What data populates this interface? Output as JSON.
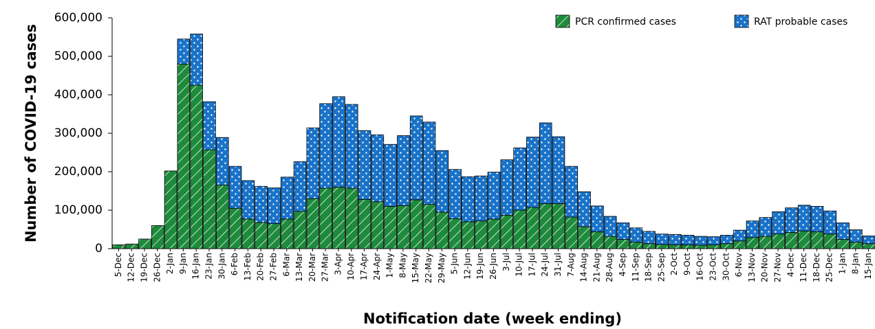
{
  "chart_data": {
    "type": "stacked_bar",
    "x_label": "Notification date (week ending)",
    "y_label": "Number of COVID-19 cases",
    "categories": [
      "5-Dec",
      "12-Dec",
      "19-Dec",
      "26-Dec",
      "2-Jan",
      "9-Jan",
      "16-Jan",
      "23-Jan",
      "30-Jan",
      "6-Feb",
      "13-Feb",
      "20-Feb",
      "27-Feb",
      "6-Mar",
      "13-Mar",
      "20-Mar",
      "27-Mar",
      "3-Apr",
      "10-Apr",
      "17-Apr",
      "24-Apr",
      "1-May",
      "8-May",
      "15-May",
      "22-May",
      "29-May",
      "5-Jun",
      "12-Jun",
      "19-Jun",
      "26-Jun",
      "3-Jul",
      "10-Jul",
      "17-Jul",
      "24-Jul",
      "31-Jul",
      "7-Aug",
      "14-Aug",
      "21-Aug",
      "28-Aug",
      "4-Sep",
      "11-Sep",
      "18-Sep",
      "25-Sep",
      "2-Oct",
      "9-Oct",
      "16-Oct",
      "23-Oct",
      "30-Oct",
      "6-Nov",
      "13-Nov",
      "20-Nov",
      "27-Nov",
      "4-Dec",
      "11-Dec",
      "18-Dec",
      "25-Dec",
      "1-Jan",
      "8-Jan",
      "15-Jan"
    ],
    "series": [
      {
        "name": "PCR confirmed cases",
        "color": "#1e8a3c",
        "values": [
          10000,
          12000,
          25000,
          60000,
          202000,
          480000,
          425000,
          257000,
          165000,
          105000,
          77000,
          68000,
          65000,
          77000,
          97000,
          130000,
          157000,
          160000,
          157000,
          128000,
          122000,
          110000,
          112000,
          127000,
          115000,
          95000,
          78000,
          70000,
          72000,
          77000,
          87000,
          100000,
          107000,
          117000,
          117000,
          82000,
          57000,
          44000,
          32000,
          24000,
          17000,
          13000,
          11000,
          10000,
          10000,
          9000,
          10000,
          13000,
          20000,
          29000,
          32000,
          38000,
          42000,
          46000,
          44000,
          38000,
          24000,
          17000,
          13000
        ]
      },
      {
        "name": "RAT probable cases",
        "color": "#1a73c9",
        "values": [
          0,
          0,
          0,
          0,
          0,
          65000,
          133000,
          125000,
          124000,
          109000,
          100000,
          94000,
          93000,
          109000,
          129000,
          184000,
          220000,
          235000,
          218000,
          179000,
          174000,
          161000,
          182000,
          218000,
          214000,
          160000,
          128000,
          117000,
          117000,
          122000,
          144000,
          162000,
          183000,
          210000,
          174000,
          132000,
          91000,
          67000,
          52000,
          43000,
          37000,
          32000,
          27000,
          27000,
          25000,
          23000,
          21000,
          22000,
          28000,
          43000,
          49000,
          58000,
          64000,
          67000,
          66000,
          60000,
          43000,
          32000,
          20000
        ]
      }
    ],
    "ylim": [
      0,
      600000
    ],
    "yticks": [
      0,
      {
        "value": 100000,
        "label": "100,000"
      },
      {
        "value": 200000,
        "label": "200,000"
      },
      {
        "value": 300000,
        "label": "300,000"
      },
      {
        "value": 400000,
        "label": "400,000"
      },
      {
        "value": 500000,
        "label": "500,000"
      },
      {
        "value": 600000,
        "label": "600,000"
      }
    ],
    "legend": "top-right"
  }
}
